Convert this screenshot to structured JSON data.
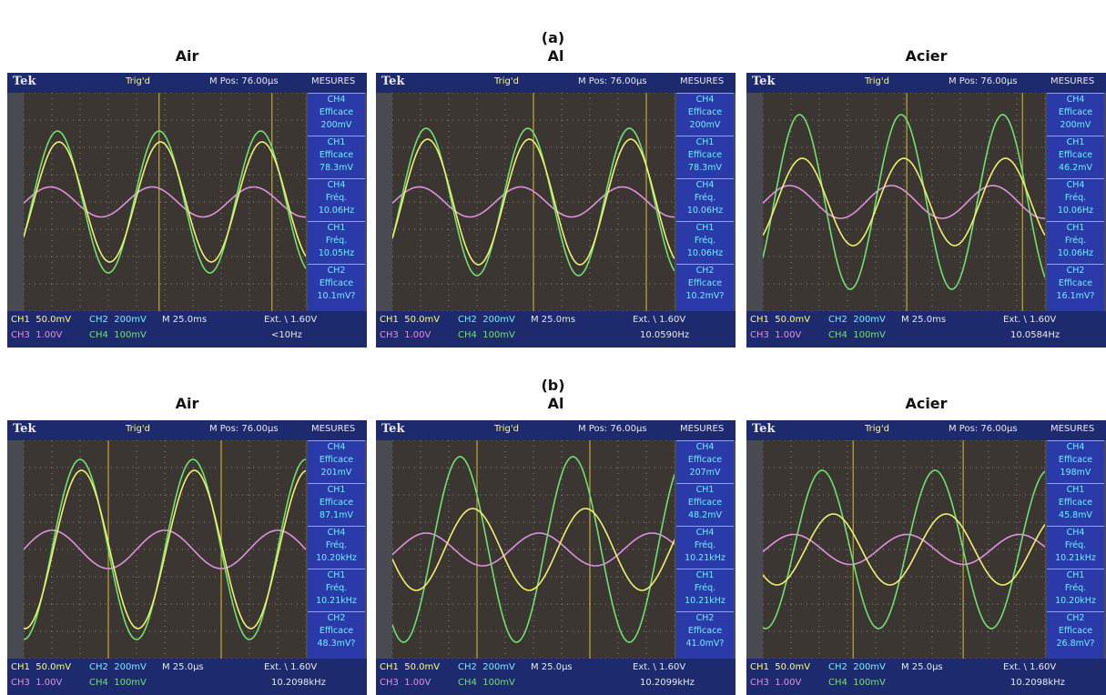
{
  "sections": [
    {
      "label": "(a)",
      "panels": [
        {
          "title": "Air",
          "header": {
            "brand": "Tek",
            "trigger": "Trig'd",
            "mpos": "M Pos: 76.00µs",
            "menu": "MESURES"
          },
          "measures": [
            {
              "channel": "CH4",
              "kind": "Efficace",
              "value": "200mV"
            },
            {
              "channel": "CH1",
              "kind": "Efficace",
              "value": "78.3mV"
            },
            {
              "channel": "CH4",
              "kind": "Fréq.",
              "value": "10.06Hz"
            },
            {
              "channel": "CH1",
              "kind": "Fréq.",
              "value": "10.05Hz"
            },
            {
              "channel": "CH2",
              "kind": "Efficace",
              "value": "10.1mV?"
            }
          ],
          "footer": {
            "ch1": "CH1  50.0mV",
            "ch2": "CH2  200mV",
            "time": "M 25.0ms",
            "ext": "Ext. \\ 1.60V",
            "ch3": "CH3  1.00V",
            "ch4": "CH4  100mV",
            "freq": "<10Hz"
          }
        },
        {
          "title": "Al",
          "header": {
            "brand": "Tek",
            "trigger": "Trig'd",
            "mpos": "M Pos: 76.00µs",
            "menu": "MESURES"
          },
          "measures": [
            {
              "channel": "CH4",
              "kind": "Efficace",
              "value": "200mV"
            },
            {
              "channel": "CH1",
              "kind": "Efficace",
              "value": "78.3mV"
            },
            {
              "channel": "CH4",
              "kind": "Fréq.",
              "value": "10.06Hz"
            },
            {
              "channel": "CH1",
              "kind": "Fréq.",
              "value": "10.06Hz"
            },
            {
              "channel": "CH2",
              "kind": "Efficace",
              "value": "10.2mV?"
            }
          ],
          "footer": {
            "ch1": "CH1  50.0mV",
            "ch2": "CH2  200mV",
            "time": "M 25.0ms",
            "ext": "Ext. \\ 1.60V",
            "ch3": "CH3  1.00V",
            "ch4": "CH4  100mV",
            "freq": "10.0590Hz"
          }
        },
        {
          "title": "Acier",
          "header": {
            "brand": "Tek",
            "trigger": "Trig'd",
            "mpos": "M Pos: 76.00µs",
            "menu": "MESURES"
          },
          "measures": [
            {
              "channel": "CH4",
              "kind": "Efficace",
              "value": "200mV"
            },
            {
              "channel": "CH1",
              "kind": "Efficace",
              "value": "46.2mV"
            },
            {
              "channel": "CH4",
              "kind": "Fréq.",
              "value": "10.06Hz"
            },
            {
              "channel": "CH1",
              "kind": "Fréq.",
              "value": "10.06Hz"
            },
            {
              "channel": "CH2",
              "kind": "Efficace",
              "value": "16.1mV?"
            }
          ],
          "footer": {
            "ch1": "CH1  50.0mV",
            "ch2": "CH2  200mV",
            "time": "M 25.0ms",
            "ext": "Ext. \\ 1.60V",
            "ch3": "CH3  1.00V",
            "ch4": "CH4  100mV",
            "freq": "10.0584Hz"
          }
        }
      ]
    },
    {
      "label": "(b)",
      "panels": [
        {
          "title": "Air",
          "header": {
            "brand": "Tek",
            "trigger": "Trig'd",
            "mpos": "M Pos: 76.00µs",
            "menu": "MESURES"
          },
          "measures": [
            {
              "channel": "CH4",
              "kind": "Efficace",
              "value": "201mV"
            },
            {
              "channel": "CH1",
              "kind": "Efficace",
              "value": "87.1mV"
            },
            {
              "channel": "CH4",
              "kind": "Fréq.",
              "value": "10.20kHz"
            },
            {
              "channel": "CH1",
              "kind": "Fréq.",
              "value": "10.21kHz"
            },
            {
              "channel": "CH2",
              "kind": "Efficace",
              "value": "48.3mV?"
            }
          ],
          "footer": {
            "ch1": "CH1  50.0mV",
            "ch2": "CH2  200mV",
            "time": "M 25.0µs",
            "ext": "Ext. \\ 1.60V",
            "ch3": "CH3  1.00V",
            "ch4": "CH4  100mV",
            "freq": "10.2098kHz"
          }
        },
        {
          "title": "Al",
          "header": {
            "brand": "Tek",
            "trigger": "Trig'd",
            "mpos": "M Pos: 76.00µs",
            "menu": "MESURES"
          },
          "measures": [
            {
              "channel": "CH4",
              "kind": "Efficace",
              "value": "207mV"
            },
            {
              "channel": "CH1",
              "kind": "Efficace",
              "value": "48.2mV"
            },
            {
              "channel": "CH4",
              "kind": "Fréq.",
              "value": "10.21kHz"
            },
            {
              "channel": "CH1",
              "kind": "Fréq.",
              "value": "10.21kHz"
            },
            {
              "channel": "CH2",
              "kind": "Efficace",
              "value": "41.0mV?"
            }
          ],
          "footer": {
            "ch1": "CH1  50.0mV",
            "ch2": "CH2  200mV",
            "time": "M 25.0µs",
            "ext": "Ext. \\ 1.60V",
            "ch3": "CH3  1.00V",
            "ch4": "CH4  100mV",
            "freq": "10.2099kHz"
          }
        },
        {
          "title": "Acier",
          "header": {
            "brand": "Tek",
            "trigger": "Trig'd",
            "mpos": "M Pos: 76.00µs",
            "menu": "MESURES"
          },
          "measures": [
            {
              "channel": "CH4",
              "kind": "Efficace",
              "value": "198mV"
            },
            {
              "channel": "CH1",
              "kind": "Efficace",
              "value": "45.8mV"
            },
            {
              "channel": "CH4",
              "kind": "Fréq.",
              "value": "10.21kHz"
            },
            {
              "channel": "CH1",
              "kind": "Fréq.",
              "value": "10.20kHz"
            },
            {
              "channel": "CH2",
              "kind": "Efficace",
              "value": "26.8mV?"
            }
          ],
          "footer": {
            "ch1": "CH1  50.0mV",
            "ch2": "CH2  200mV",
            "time": "M 25.0µs",
            "ext": "Ext. \\ 1.60V",
            "ch3": "CH3  1.00V",
            "ch4": "CH4  100mV",
            "freq": "10.2098kHz"
          }
        }
      ]
    }
  ]
}
